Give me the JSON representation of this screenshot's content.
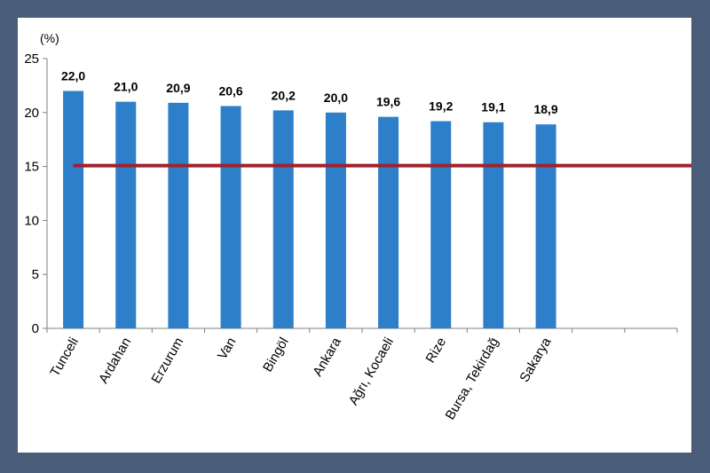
{
  "chart_data": {
    "type": "bar",
    "unit_label": "(%)",
    "categories": [
      "Tunceli",
      "Ardahan",
      "Erzurum",
      "Van",
      "Bingöl",
      "Ankara",
      "Ağrı, Kocaeli",
      "Rize",
      "Bursa, Tekirdağ",
      "Sakarya"
    ],
    "series": [
      {
        "values": [
          22.0,
          21.0,
          20.9,
          20.6,
          20.2,
          20.0,
          19.6,
          19.2,
          19.1,
          18.9
        ]
      }
    ],
    "data_labels": [
      "22,0",
      "21,0",
      "20,9",
      "20,6",
      "20,2",
      "20,0",
      "19,6",
      "19,2",
      "19,1",
      "18,9"
    ],
    "empty_slots": 2,
    "ylim": [
      0,
      25
    ],
    "yticks": [
      0,
      5,
      10,
      15,
      20,
      25
    ],
    "reference_line": {
      "value": 15.0,
      "color": "#a3202a"
    },
    "bar_color": "#2e7fca",
    "grid": false,
    "title": "",
    "xlabel": "",
    "ylabel": ""
  },
  "colors": {
    "frame": "#4a5d78",
    "background": "#ffffff"
  }
}
